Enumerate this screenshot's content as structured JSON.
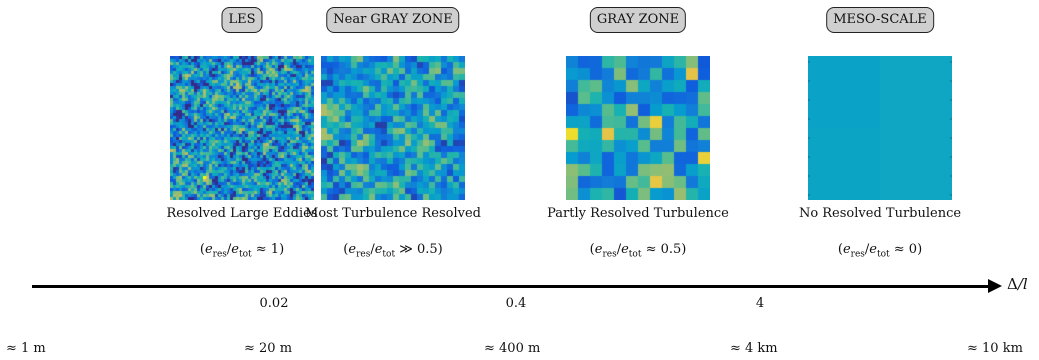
{
  "regimes": [
    {
      "badge": "LES",
      "caption": "Resolved Large Eddies",
      "ratio": {
        "open": "(",
        "e1": "e",
        "sub1": "res",
        "slash": "/",
        "e2": "e",
        "sub2": "tot",
        "rel": " ≈ 1)"
      },
      "field": {
        "block": 3,
        "smooth": 1,
        "base": 0.35,
        "amp": 1.0,
        "seed": 11
      }
    },
    {
      "badge": "Near GRAY ZONE",
      "caption": "Most Turbulence Resolved",
      "ratio": {
        "open": "(",
        "e1": "e",
        "sub1": "res",
        "slash": "/",
        "e2": "e",
        "sub2": "tot",
        "rel": " ≫ 0.5)"
      },
      "field": {
        "block": 6,
        "smooth": 1,
        "base": 0.4,
        "amp": 0.8,
        "seed": 27
      }
    },
    {
      "badge": "GRAY ZONE",
      "caption": "Partly Resolved Turbulence",
      "ratio": {
        "open": "(",
        "e1": "e",
        "sub1": "res",
        "slash": "/",
        "e2": "e",
        "sub2": "tot",
        "rel": " ≈ 0.5)"
      },
      "field": {
        "block": 12,
        "smooth": 0,
        "base": 0.45,
        "amp": 0.55,
        "seed": 53
      }
    },
    {
      "badge": "MESO-SCALE",
      "caption": "No Resolved Turbulence",
      "ratio": {
        "open": "(",
        "e1": "e",
        "sub1": "res",
        "slash": "/",
        "e2": "e",
        "sub2": "tot",
        "rel": " ≈ 0)"
      },
      "field": {
        "block": 72,
        "smooth": 0,
        "base": 0.42,
        "amp": 0.02,
        "seed": 7
      }
    }
  ],
  "axis": {
    "label_delta": "Δ",
    "label_rest": "/l",
    "ticks": [
      "0.02",
      "0.4",
      "4"
    ]
  },
  "scales": [
    "≈ 1 m",
    "≈ 20 m",
    "≈ 400 m",
    "≈ 4 km",
    "≈ 10 km"
  ],
  "colors": {
    "colormap": "parula",
    "axis": "#000000",
    "badge_fill": "#cfcfcf"
  }
}
